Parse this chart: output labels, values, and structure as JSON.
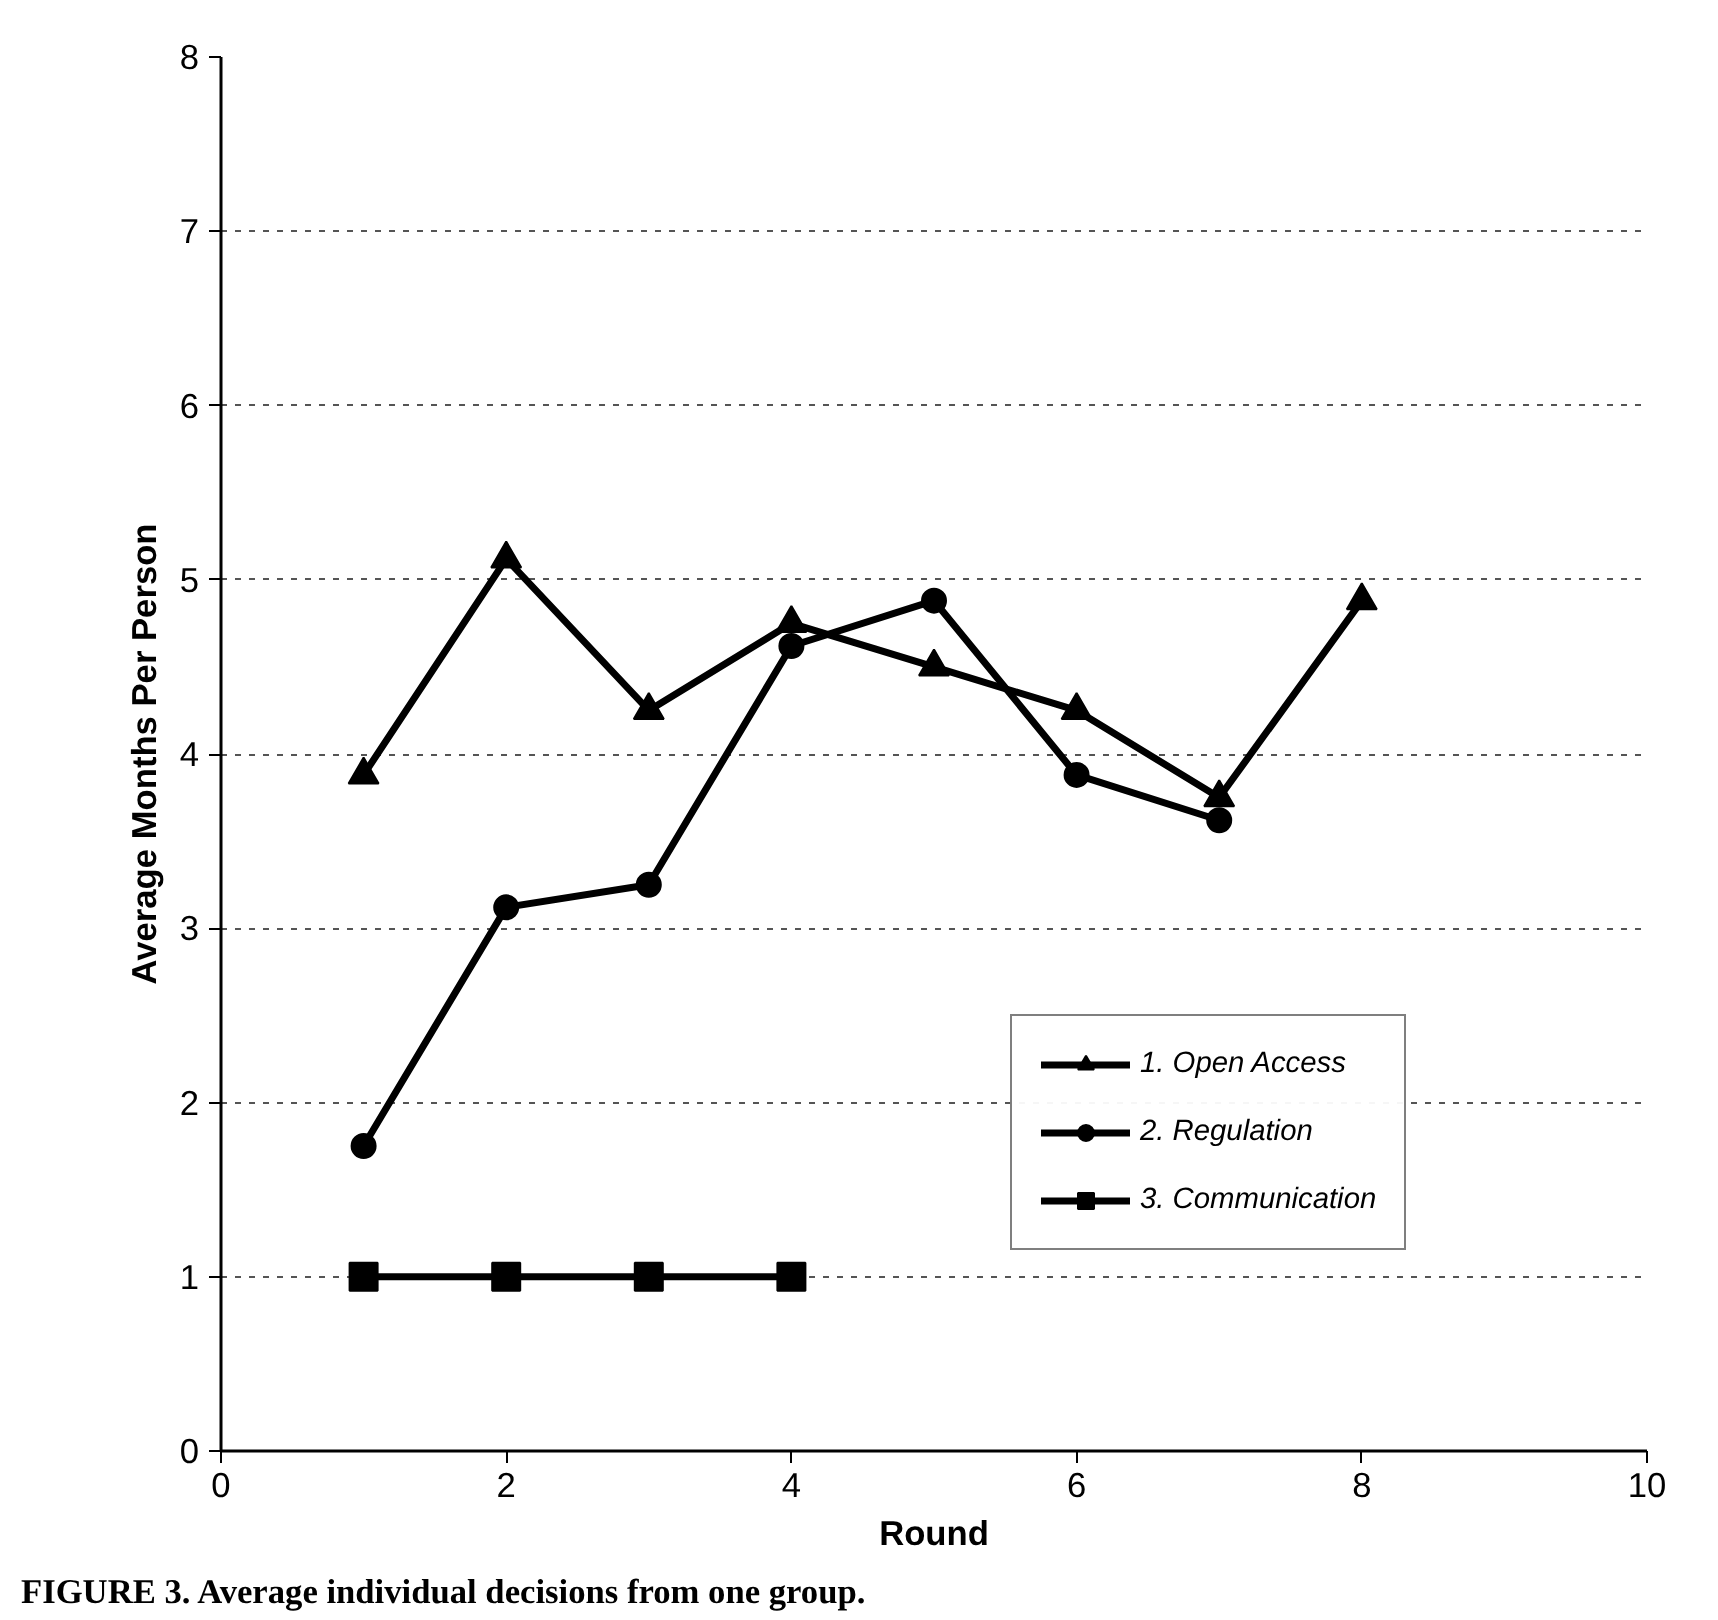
{
  "chart_data": {
    "type": "line",
    "xlabel": "Round",
    "ylabel": "Average Months Per Person",
    "annotations": [
      "FIGURE 3. Average individual decisions from one group."
    ],
    "xlim": [
      0,
      10
    ],
    "xticks": [
      0,
      2,
      4,
      6,
      8,
      10
    ],
    "ylim": [
      0,
      8
    ],
    "yticks": [
      0,
      1,
      2,
      3,
      4,
      5,
      6,
      7,
      8
    ],
    "grid": "y",
    "legend": "right",
    "line_style": "solid",
    "series": [
      {
        "name": "1. Open Access",
        "color": "#000000",
        "marker": "triangle",
        "x": [
          1,
          2,
          3,
          4,
          5,
          6,
          7,
          8
        ],
        "values": [
          3.88,
          5.12,
          4.25,
          4.75,
          4.5,
          4.25,
          3.75,
          4.88
        ]
      },
      {
        "name": "2. Regulation",
        "color": "#000000",
        "marker": "circle",
        "x": [
          1,
          2,
          3,
          4,
          5,
          6,
          7
        ],
        "values": [
          1.75,
          3.12,
          3.25,
          4.62,
          4.88,
          3.88,
          3.62
        ]
      },
      {
        "name": "3. Communication",
        "color": "#000000",
        "marker": "square",
        "x": [
          1,
          2,
          3,
          4
        ],
        "values": [
          1,
          1,
          1,
          1
        ]
      }
    ]
  }
}
